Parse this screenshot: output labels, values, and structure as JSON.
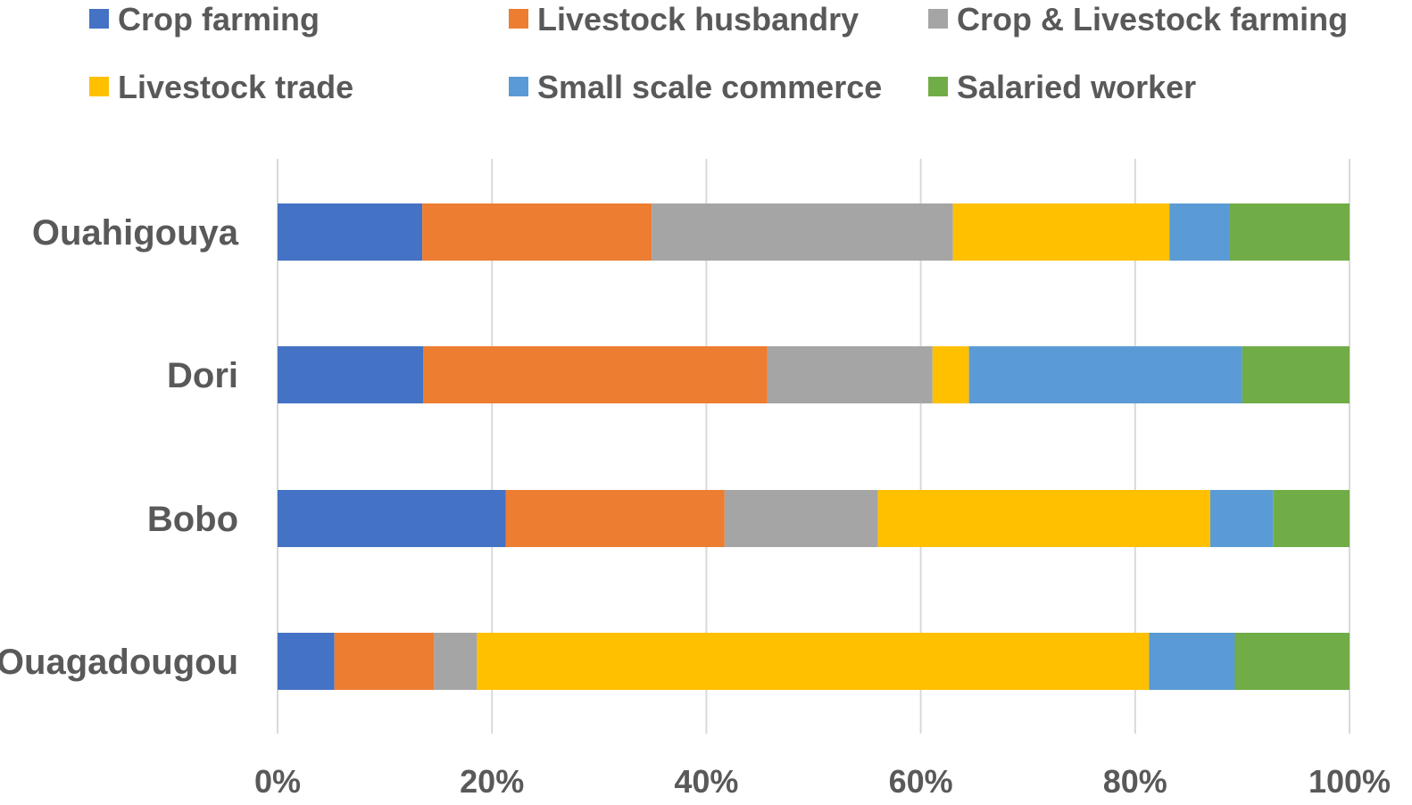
{
  "chart_data": {
    "type": "bar",
    "orientation": "horizontal",
    "stacked": "percent",
    "categories": [
      "Ouahigouya",
      "Dori",
      "Bobo",
      "Ouagadougou"
    ],
    "series": [
      {
        "name": "Crop farming",
        "color": "#4472C4",
        "values": [
          13.5,
          13.6,
          21.3,
          5.3
        ]
      },
      {
        "name": "Livestock husbandry",
        "color": "#ED7D31",
        "values": [
          21.4,
          32.1,
          20.4,
          9.3
        ]
      },
      {
        "name": "Crop & Livestock farming",
        "color": "#A5A5A5",
        "values": [
          28.1,
          15.4,
          14.3,
          4.0
        ]
      },
      {
        "name": "Livestock trade",
        "color": "#FFC000",
        "values": [
          20.2,
          3.4,
          31.0,
          62.7
        ]
      },
      {
        "name": "Small scale commerce",
        "color": "#5B9BD5",
        "values": [
          5.6,
          25.5,
          5.9,
          8.0
        ]
      },
      {
        "name": "Salaried worker",
        "color": "#70AD47",
        "values": [
          11.2,
          10.0,
          7.1,
          10.7
        ]
      }
    ],
    "xlim": [
      0,
      100
    ],
    "xticks": [
      "0%",
      "20%",
      "40%",
      "60%",
      "80%",
      "100%"
    ],
    "grid": true,
    "legend_position": "top",
    "title": "",
    "xlabel": "",
    "ylabel": ""
  }
}
